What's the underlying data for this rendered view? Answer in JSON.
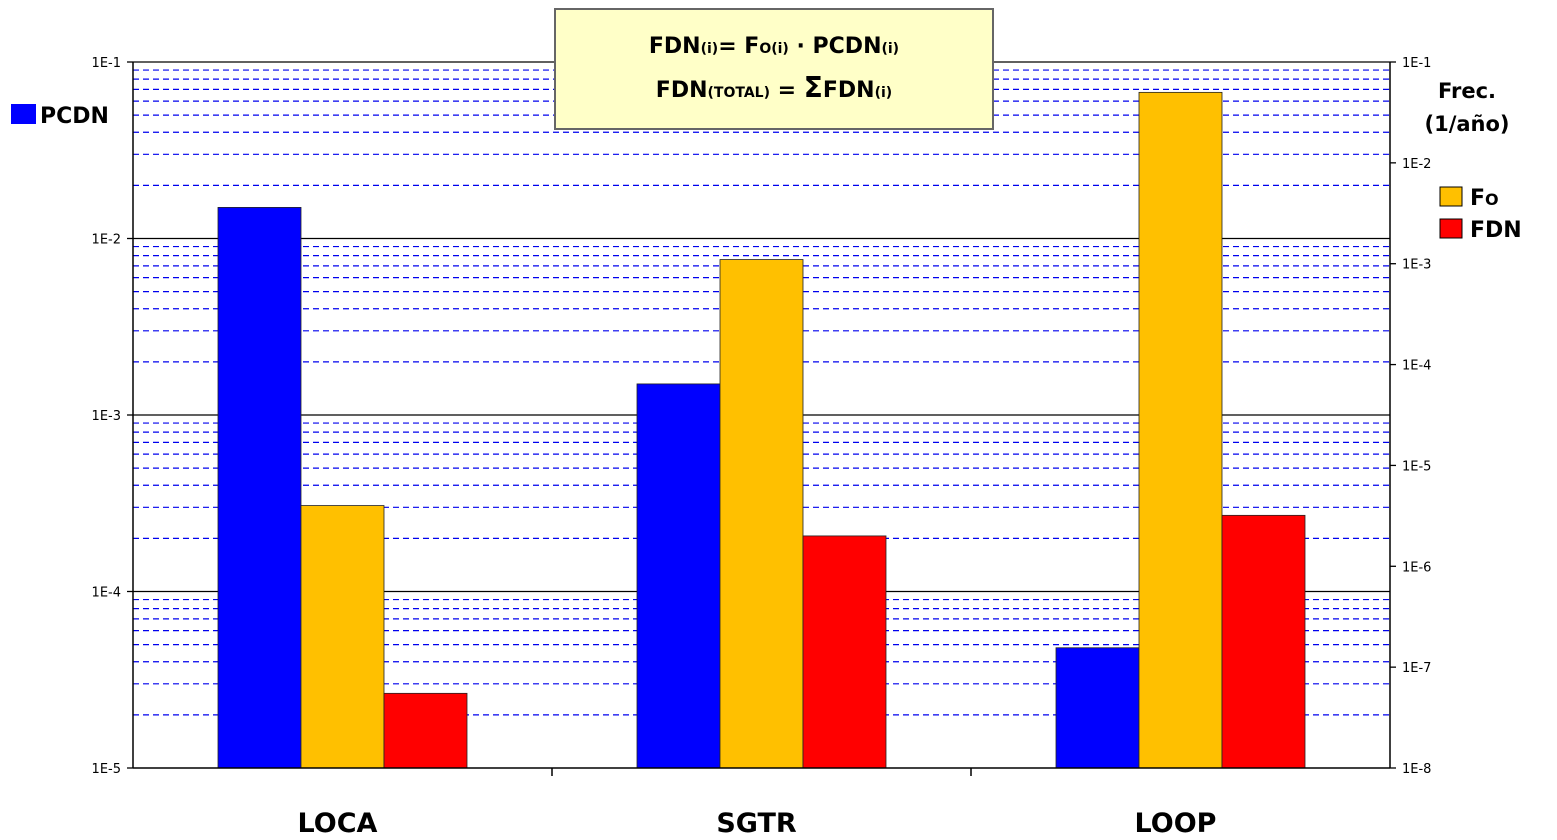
{
  "formula": {
    "line1": {
      "lhs": "FDN",
      "lhs_sub": "(i)",
      "op": "= ",
      "fo": "F",
      "fo_o": "O",
      "fo_sub": "(i)",
      "dot": " · ",
      "pcdn": "PCDN",
      "pcdn_sub": "(i)"
    },
    "line2": {
      "lhs": "FDN",
      "lhs_sub": "(TOTAL)",
      "op": " = ",
      "sum": "Σ",
      "rhs": "FDN",
      "rhs_sub": "(i)"
    }
  },
  "chart_data": {
    "type": "bar",
    "categories": [
      "LOCA",
      "SGTR",
      "LOOP"
    ],
    "y_left": {
      "scale": "log",
      "range": [
        1e-05,
        0.1
      ],
      "ticks": [
        "1E-5",
        "1E-4",
        "1E-3",
        "1E-2",
        "1E-1"
      ],
      "label": "PCDN"
    },
    "y_right": {
      "scale": "log",
      "range": [
        1e-08,
        0.1
      ],
      "ticks": [
        "1E-8",
        "1E-7",
        "1E-6",
        "1E-5",
        "1E-4",
        "1E-3",
        "1E-2",
        "1E-1"
      ],
      "label_line1": "Frec.",
      "label_line2": "(1/año)"
    },
    "series": [
      {
        "name": "PCDN",
        "legend_text": "PCDN",
        "axis": "left",
        "color": "#0000ff",
        "values": [
          0.015,
          0.0015,
          4.8e-05
        ]
      },
      {
        "name": "Fo",
        "legend_main": "F",
        "legend_sub": "O",
        "axis": "right",
        "color": "#ffc000",
        "values": [
          4e-06,
          0.0011,
          0.05
        ]
      },
      {
        "name": "FDN",
        "legend_text": "FDN",
        "axis": "right",
        "color": "#ff0000",
        "values": [
          5.5e-08,
          2e-06,
          3.2e-06
        ]
      }
    ],
    "legend": {
      "left": "top-left",
      "right": "right"
    },
    "grid": {
      "major": "solid",
      "minor": "dashed",
      "minor_color": "#0000ee"
    }
  }
}
